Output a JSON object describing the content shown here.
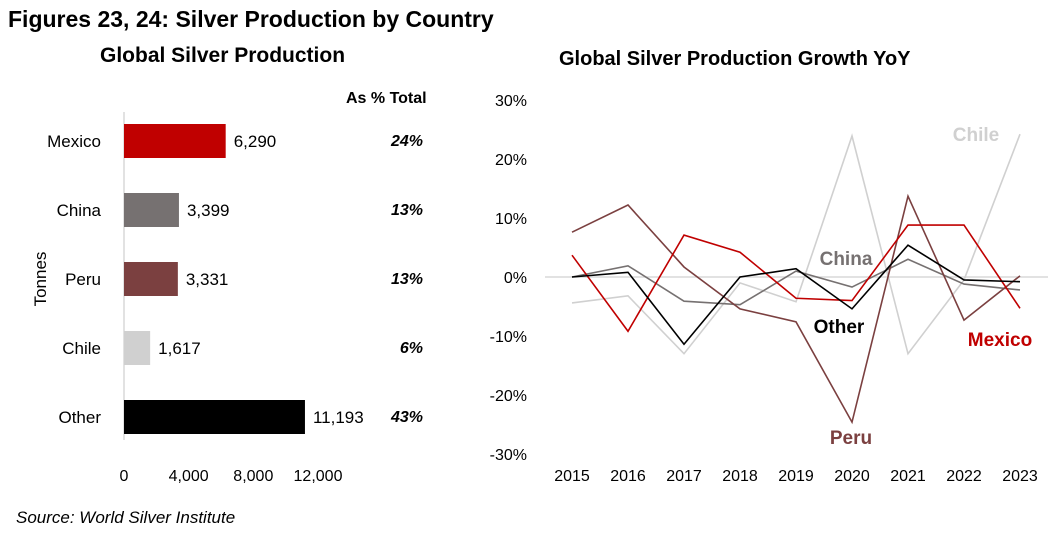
{
  "figure_title": "Figures 23, 24: Silver Production by Country",
  "source": "Source: World Silver Institute",
  "chart_data": [
    {
      "type": "bar",
      "orientation": "horizontal",
      "title": "Global Silver Production",
      "ylabel": "Tonnes",
      "xlabel": "",
      "categories": [
        "Mexico",
        "China",
        "Peru",
        "Chile",
        "Other"
      ],
      "values": [
        6290,
        3399,
        3331,
        1617,
        11193
      ],
      "value_labels": [
        "6,290",
        "3,399",
        "3,331",
        "1,617",
        "11,193"
      ],
      "colors": [
        "#c00000",
        "#767171",
        "#7b4040",
        "#d0d0d0",
        "#000000"
      ],
      "pct_header": "As % Total",
      "pct_labels": [
        "24%",
        "13%",
        "13%",
        "6%",
        "43%"
      ],
      "xlim": [
        0,
        12000
      ],
      "xticks": [
        0,
        4000,
        8000,
        12000
      ],
      "xtick_labels": [
        "0",
        "4,000",
        "8,000",
        "12,000"
      ],
      "grid": false
    },
    {
      "type": "line",
      "title": "Global Silver Production Growth YoY",
      "xlabel": "",
      "ylabel": "",
      "x": [
        "2015",
        "2016",
        "2017",
        "2018",
        "2019",
        "2020",
        "2021",
        "2022",
        "2023"
      ],
      "ylim": [
        -30,
        30
      ],
      "yticks": [
        -30,
        -20,
        -10,
        0,
        10,
        20,
        30
      ],
      "ytick_labels": [
        "-30%",
        "-20%",
        "-10%",
        "0%",
        "10%",
        "20%",
        "30%"
      ],
      "grid": false,
      "zero_line": true,
      "legend": "inline labels",
      "series": [
        {
          "name": "Chile",
          "color": "#d0d0d0",
          "values": [
            -4.4,
            -3.2,
            -13.0,
            -1.0,
            -4.2,
            23.9,
            -13.0,
            -0.5,
            24.2
          ]
        },
        {
          "name": "China",
          "color": "#767171",
          "values": [
            0.0,
            1.9,
            -4.1,
            -4.7,
            1.0,
            -1.7,
            3.0,
            -1.2,
            -2.2
          ]
        },
        {
          "name": "Peru",
          "color": "#7b4040",
          "values": [
            7.6,
            12.2,
            1.7,
            -5.4,
            -7.6,
            -24.6,
            13.7,
            -7.3,
            0.2
          ]
        },
        {
          "name": "Mexico",
          "color": "#c00000",
          "values": [
            3.7,
            -9.2,
            7.1,
            4.2,
            -3.6,
            -4.0,
            8.8,
            8.8,
            -5.3
          ]
        },
        {
          "name": "Other",
          "color": "#000000",
          "values": [
            0.0,
            0.8,
            -11.4,
            0.0,
            1.4,
            -5.4,
            5.4,
            -0.5,
            -0.8
          ]
        }
      ]
    }
  ]
}
